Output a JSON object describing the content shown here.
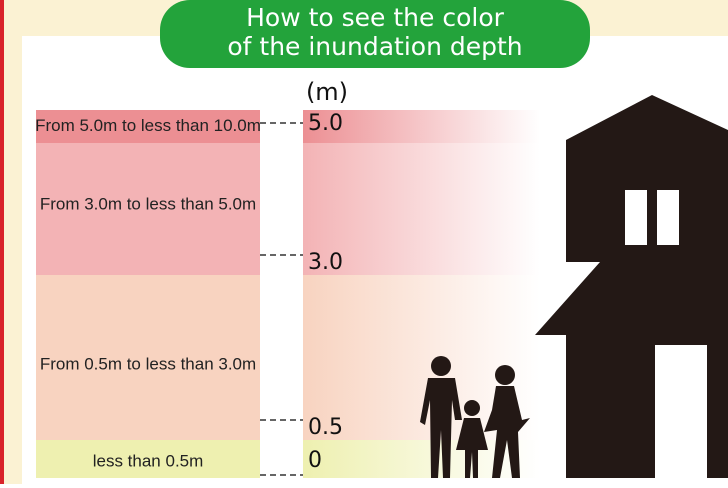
{
  "banner": {
    "line1": "How to see the color",
    "line2": "of the inundation depth"
  },
  "unit": "(m)",
  "bands": [
    {
      "label": "From 5.0m to less than 10.0m",
      "tick": "5.0"
    },
    {
      "label": "From 3.0m to less than 5.0m",
      "tick": "3.0"
    },
    {
      "label": "From 0.5m to less than 3.0m",
      "tick": "0.5"
    },
    {
      "label": "less than 0.5m",
      "tick": "0"
    }
  ]
}
